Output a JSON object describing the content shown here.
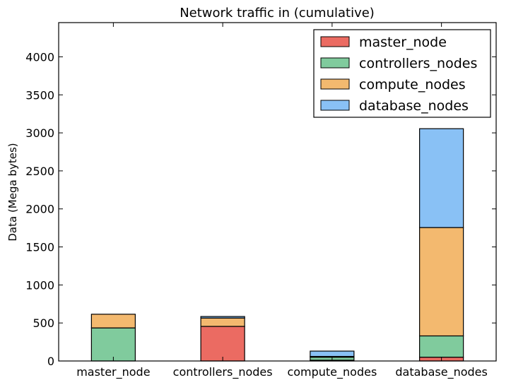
{
  "chart_data": {
    "type": "bar",
    "stacked": true,
    "title": "Network traffic in (cumulative)",
    "xlabel": "",
    "ylabel": "Data (Mega bytes)",
    "ylim": [
      0,
      4450
    ],
    "yticks": [
      0,
      500,
      1000,
      1500,
      2000,
      2500,
      3000,
      3500,
      4000
    ],
    "grid": false,
    "legend_position": "top-right",
    "categories": [
      "master_node",
      "controllers_nodes",
      "compute_nodes",
      "database_nodes"
    ],
    "series": [
      {
        "name": "master_node",
        "color": "#eb6b62",
        "values": [
          0,
          455,
          10,
          50
        ]
      },
      {
        "name": "controllers_nodes",
        "color": "#80cb9d",
        "values": [
          435,
          0,
          40,
          280
        ]
      },
      {
        "name": "compute_nodes",
        "color": "#f3b96f",
        "values": [
          180,
          110,
          10,
          1425
        ]
      },
      {
        "name": "database_nodes",
        "color": "#89c1f5",
        "values": [
          0,
          20,
          70,
          1300
        ]
      }
    ]
  }
}
